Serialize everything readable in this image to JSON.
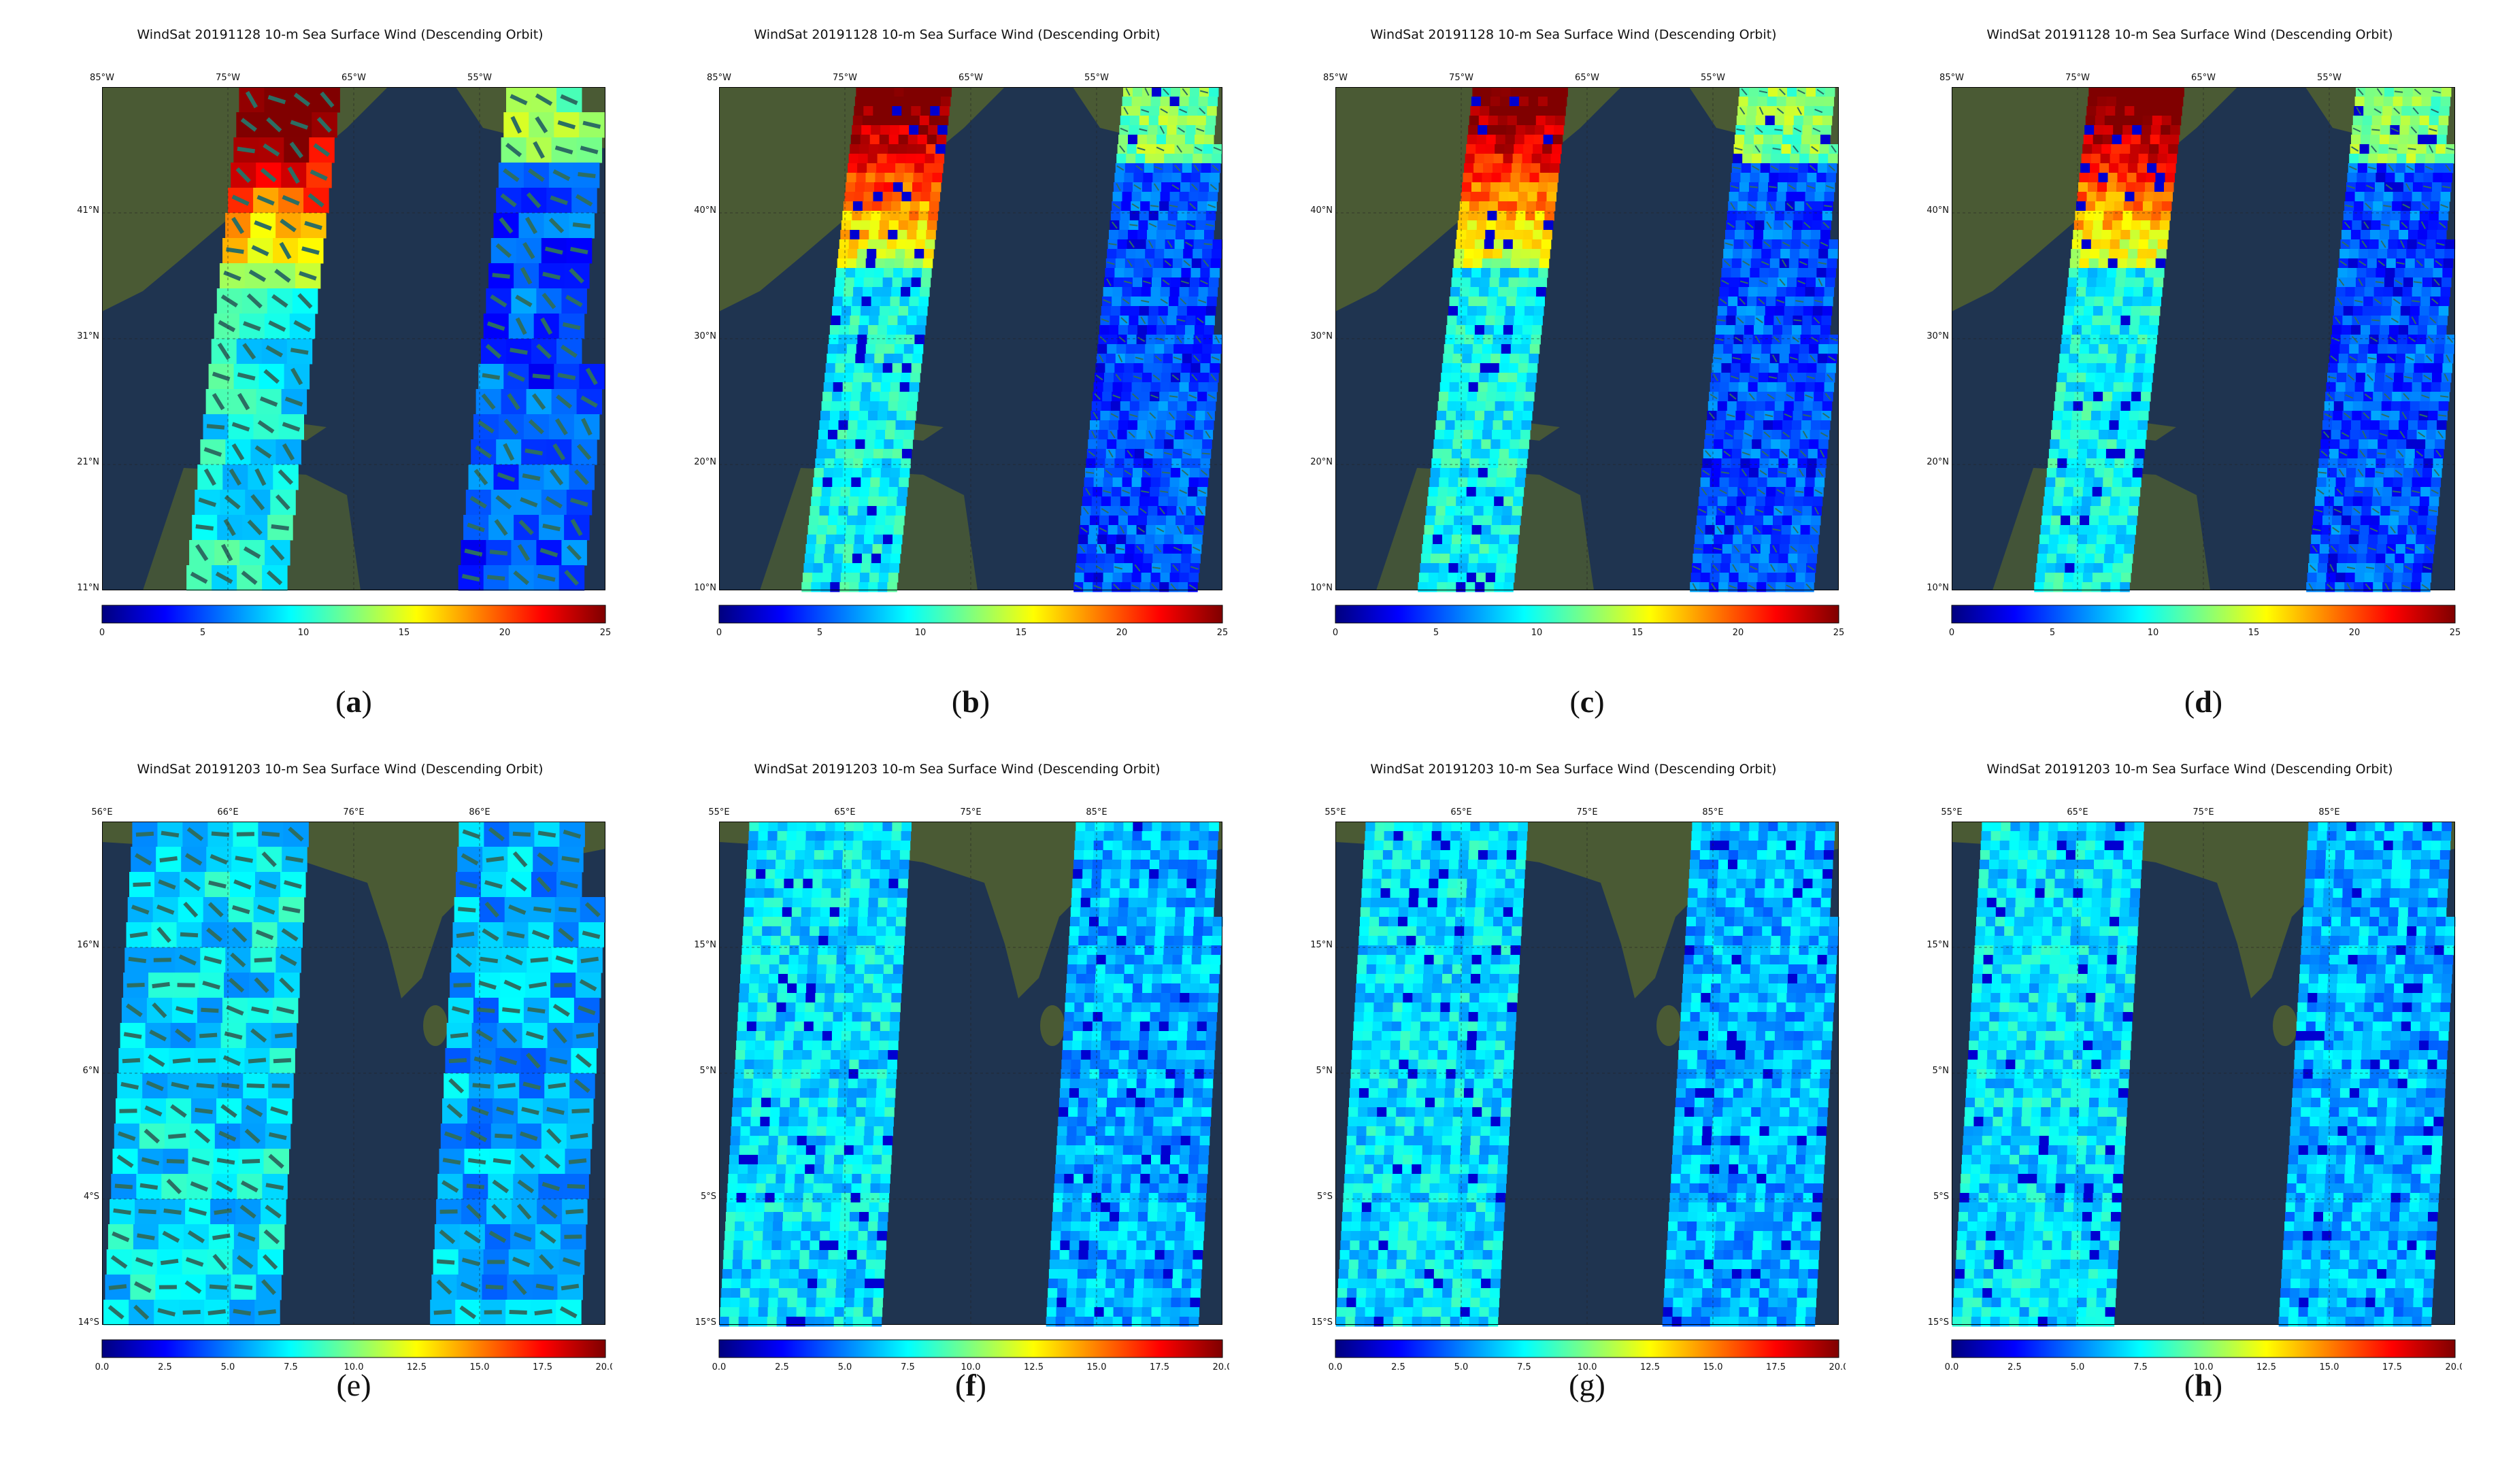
{
  "figure": {
    "rows": [
      {
        "title": "WindSat 20191128 10-m Sea Surface Wind (Descending Orbit)",
        "lon_labels": [
          "85°W",
          "75°W",
          "65°W",
          "55°W"
        ],
        "colorbar_ticks": [
          "0",
          "5",
          "10",
          "15",
          "20",
          "25"
        ],
        "panels": [
          {
            "caption": "a",
            "bold": true,
            "lat_labels": [
              "41°N",
              "31°N",
              "21°N",
              "11°N"
            ],
            "style": "coarse"
          },
          {
            "caption": "b",
            "bold": true,
            "lat_labels": [
              "40°N",
              "30°N",
              "20°N",
              "10°N"
            ],
            "style": "fine"
          },
          {
            "caption": "c",
            "bold": true,
            "lat_labels": [
              "40°N",
              "30°N",
              "20°N",
              "10°N"
            ],
            "style": "fine"
          },
          {
            "caption": "d",
            "bold": true,
            "lat_labels": [
              "40°N",
              "30°N",
              "20°N",
              "10°N"
            ],
            "style": "fine"
          }
        ]
      },
      {
        "title": "WindSat 20191203 10-m Sea Surface Wind (Descending Orbit)",
        "colorbar_ticks": [
          "0.0",
          "2.5",
          "5.0",
          "7.5",
          "10.0",
          "12.5",
          "15.0",
          "17.5",
          "20.0"
        ],
        "panels": [
          {
            "caption": "e",
            "bold": false,
            "lon_labels": [
              "56°E",
              "66°E",
              "76°E",
              "86°E"
            ],
            "lat_labels": [
              "16°N",
              "6°N",
              "4°S",
              "14°S"
            ],
            "style": "coarse"
          },
          {
            "caption": "f",
            "bold": true,
            "lon_labels": [
              "55°E",
              "65°E",
              "75°E",
              "85°E"
            ],
            "lat_labels": [
              "15°N",
              "5°N",
              "5°S",
              "15°S"
            ],
            "style": "fine"
          },
          {
            "caption": "g",
            "bold": false,
            "lon_labels": [
              "55°E",
              "65°E",
              "75°E",
              "85°E"
            ],
            "lat_labels": [
              "15°N",
              "5°N",
              "5°S",
              "15°S"
            ],
            "style": "fine"
          },
          {
            "caption": "h",
            "bold": true,
            "lon_labels": [
              "55°E",
              "65°E",
              "75°E",
              "85°E"
            ],
            "lat_labels": [
              "15°N",
              "5°N",
              "5°S",
              "15°S"
            ],
            "style": "fine"
          }
        ]
      }
    ],
    "colormap": [
      "#00007f",
      "#0000ff",
      "#007fff",
      "#00ffff",
      "#7fff7f",
      "#ffff00",
      "#ff7f00",
      "#ff0000",
      "#7f0000"
    ],
    "land_color": "#4a5a34",
    "ocean_color": "#1f3450"
  }
}
